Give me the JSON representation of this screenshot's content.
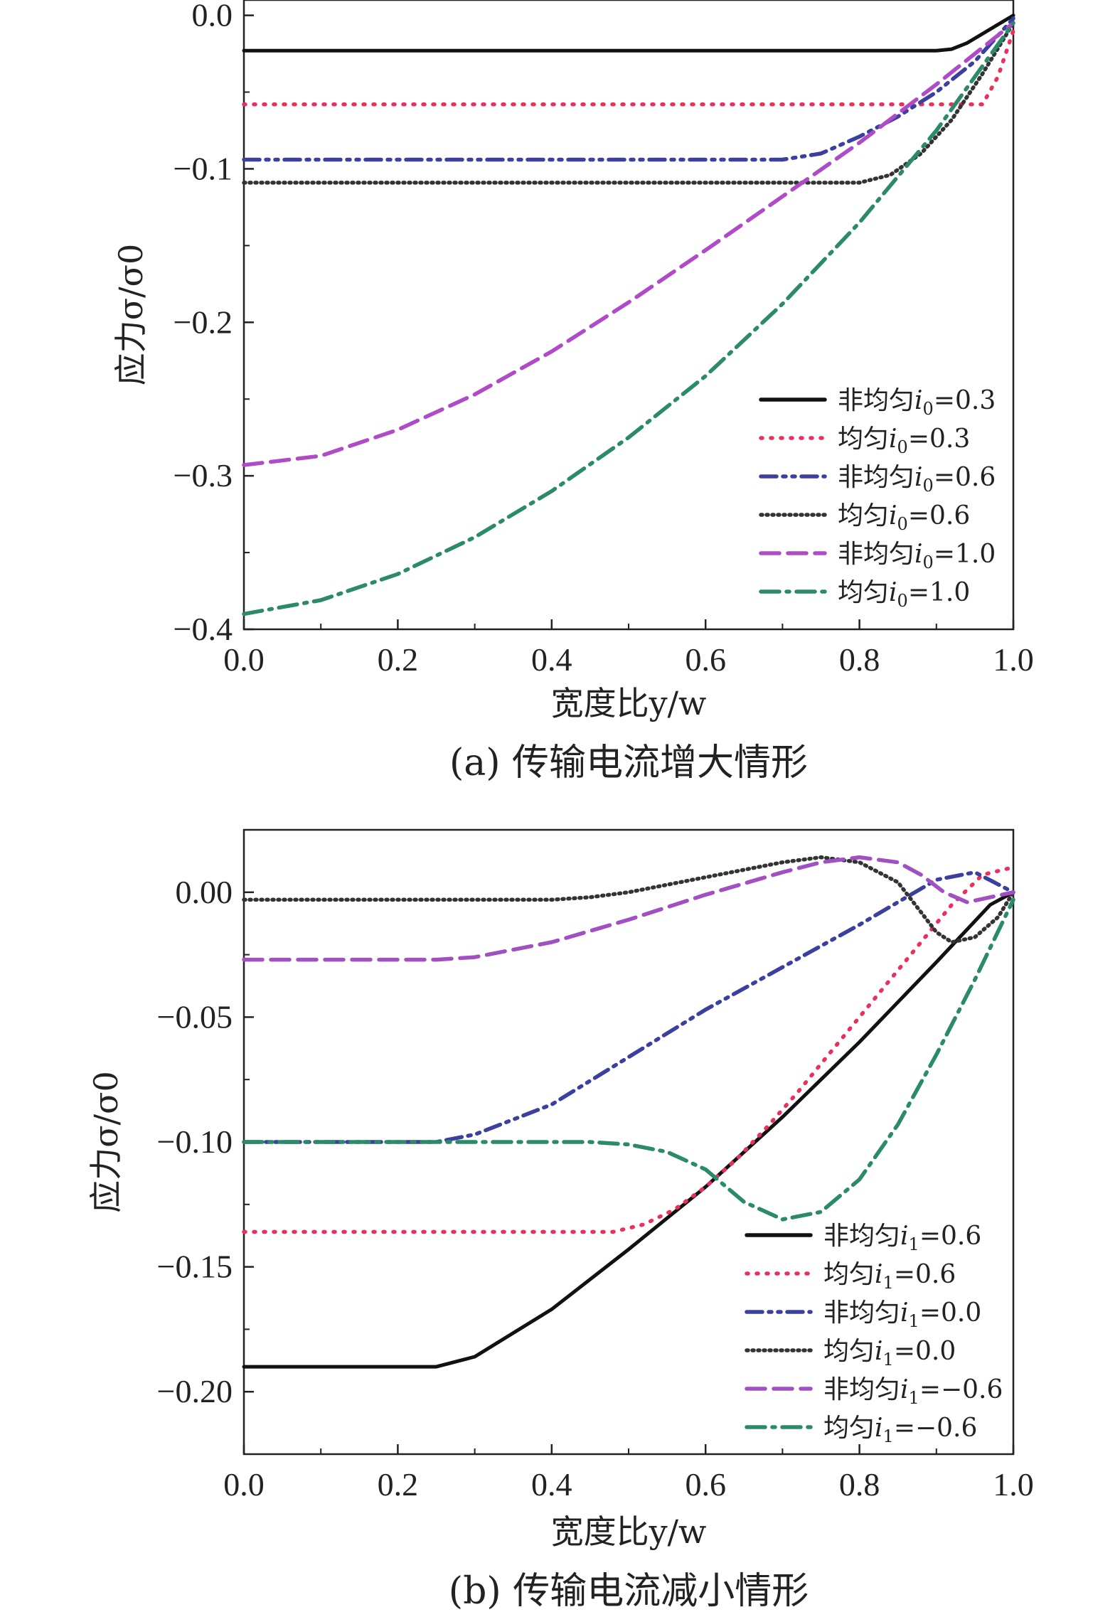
{
  "chart_data": [
    {
      "type": "line",
      "caption": "(a) 传输电流增大情形",
      "xlabel": "宽度比y/w",
      "ylabel": "应力σ/σ0",
      "xlim": [
        0,
        1
      ],
      "ylim": [
        -0.4,
        0.01
      ],
      "xticks": [
        0.0,
        0.2,
        0.4,
        0.6,
        0.8,
        1.0
      ],
      "xtick_labels": [
        "0.0",
        "0.2",
        "0.4",
        "0.6",
        "0.8",
        "1.0"
      ],
      "yticks": [
        0.0,
        -0.1,
        -0.2,
        -0.3,
        -0.4
      ],
      "ytick_labels": [
        "0.0",
        "−0.1",
        "−0.2",
        "−0.3",
        "−0.4"
      ],
      "grid": false,
      "legend_position": "bottom-right",
      "series": [
        {
          "name": "非均匀i0=0.3",
          "label_text": "非均匀",
          "label_var": "i",
          "label_sub": "0",
          "label_val": "=0.3",
          "color": "#111111",
          "style": "solid",
          "x": [
            0,
            0.9,
            0.92,
            0.94,
            0.96,
            0.98,
            1.0
          ],
          "y": [
            -0.023,
            -0.023,
            -0.022,
            -0.018,
            -0.012,
            -0.006,
            0.0
          ]
        },
        {
          "name": "均匀i0=0.3",
          "label_text": "均匀",
          "label_var": "i",
          "label_sub": "0",
          "label_val": "=0.3",
          "color": "#e8305a",
          "style": "dot",
          "x": [
            0,
            0.96,
            0.98,
            1.0
          ],
          "y": [
            -0.058,
            -0.058,
            -0.04,
            -0.01
          ]
        },
        {
          "name": "非均匀i0=0.6",
          "label_text": "非均匀",
          "label_var": "i",
          "label_sub": "0",
          "label_val": "=0.6",
          "color": "#3b3f9e",
          "style": "dashdotdot",
          "x": [
            0,
            0.7,
            0.75,
            0.8,
            0.85,
            0.9,
            0.95,
            1.0
          ],
          "y": [
            -0.094,
            -0.094,
            -0.09,
            -0.079,
            -0.066,
            -0.05,
            -0.03,
            -0.002
          ]
        },
        {
          "name": "均匀i0=0.6",
          "label_text": "均匀",
          "label_var": "i",
          "label_sub": "0",
          "label_val": "=0.6",
          "color": "#333333",
          "style": "shortdot",
          "x": [
            0,
            0.8,
            0.84,
            0.88,
            0.92,
            0.96,
            1.0
          ],
          "y": [
            -0.109,
            -0.109,
            -0.104,
            -0.09,
            -0.068,
            -0.038,
            -0.005
          ]
        },
        {
          "name": "非均匀i0=1.0",
          "label_text": "非均匀",
          "label_var": "i",
          "label_sub": "0",
          "label_val": "=1.0",
          "color": "#b04bc8",
          "style": "dash",
          "x": [
            0,
            0.1,
            0.2,
            0.3,
            0.4,
            0.5,
            0.6,
            0.7,
            0.8,
            0.9,
            1.0
          ],
          "y": [
            -0.293,
            -0.287,
            -0.27,
            -0.247,
            -0.219,
            -0.187,
            -0.153,
            -0.118,
            -0.083,
            -0.045,
            -0.005
          ]
        },
        {
          "name": "均匀i0=1.0",
          "label_text": "均匀",
          "label_var": "i",
          "label_sub": "0",
          "label_val": "=1.0",
          "color": "#2a8a6a",
          "style": "dashdot",
          "x": [
            0,
            0.1,
            0.2,
            0.3,
            0.4,
            0.5,
            0.6,
            0.7,
            0.8,
            0.9,
            1.0
          ],
          "y": [
            -0.39,
            -0.381,
            -0.364,
            -0.34,
            -0.31,
            -0.275,
            -0.235,
            -0.188,
            -0.135,
            -0.075,
            -0.005
          ]
        }
      ]
    },
    {
      "type": "line",
      "caption": "(b) 传输电流减小情形",
      "xlabel": "宽度比y/w",
      "ylabel": "应力σ/σ0",
      "xlim": [
        0,
        1
      ],
      "ylim": [
        -0.225,
        0.025
      ],
      "xticks": [
        0.0,
        0.2,
        0.4,
        0.6,
        0.8,
        1.0
      ],
      "xtick_labels": [
        "0.0",
        "0.2",
        "0.4",
        "0.6",
        "0.8",
        "1.0"
      ],
      "yticks": [
        0.0,
        -0.05,
        -0.1,
        -0.15,
        -0.2
      ],
      "ytick_labels": [
        "0.00",
        "−0.05",
        "−0.10",
        "−0.15",
        "−0.20"
      ],
      "grid": false,
      "legend_position": "bottom-right",
      "series": [
        {
          "name": "非均匀i1=0.6",
          "label_text": "非均匀",
          "label_var": "i",
          "label_sub": "1",
          "label_val": "=0.6",
          "color": "#111111",
          "style": "solid",
          "x": [
            0,
            0.25,
            0.3,
            0.4,
            0.5,
            0.6,
            0.7,
            0.8,
            0.9,
            0.97,
            1.0
          ],
          "y": [
            -0.19,
            -0.19,
            -0.186,
            -0.167,
            -0.143,
            -0.118,
            -0.09,
            -0.06,
            -0.028,
            -0.005,
            0.0
          ]
        },
        {
          "name": "均匀i1=0.6",
          "label_text": "均匀",
          "label_var": "i",
          "label_sub": "1",
          "label_val": "=0.6",
          "color": "#e8305a",
          "style": "dot",
          "x": [
            0,
            0.48,
            0.52,
            0.56,
            0.6,
            0.64,
            0.68,
            0.72,
            0.76,
            0.8,
            0.84,
            0.88,
            0.92,
            0.96,
            1.0
          ],
          "y": [
            -0.136,
            -0.136,
            -0.133,
            -0.127,
            -0.118,
            -0.107,
            -0.094,
            -0.08,
            -0.065,
            -0.05,
            -0.035,
            -0.02,
            -0.005,
            0.007,
            0.01
          ]
        },
        {
          "name": "非均匀i1=0.0",
          "label_text": "非均匀",
          "label_var": "i",
          "label_sub": "1",
          "label_val": "=0.0",
          "color": "#3b3f9e",
          "style": "dashdotdot",
          "x": [
            0,
            0.25,
            0.3,
            0.4,
            0.5,
            0.6,
            0.7,
            0.8,
            0.85,
            0.9,
            0.95,
            1.0
          ],
          "y": [
            -0.1,
            -0.1,
            -0.097,
            -0.085,
            -0.066,
            -0.047,
            -0.03,
            -0.013,
            -0.004,
            0.005,
            0.008,
            0.0
          ]
        },
        {
          "name": "均匀i1=0.0",
          "label_text": "均匀",
          "label_var": "i",
          "label_sub": "1",
          "label_val": "=0.0",
          "color": "#333333",
          "style": "shortdot",
          "x": [
            0,
            0.4,
            0.45,
            0.5,
            0.6,
            0.7,
            0.75,
            0.8,
            0.85,
            0.88,
            0.9,
            0.92,
            0.95,
            0.98,
            1.0
          ],
          "y": [
            -0.003,
            -0.003,
            -0.002,
            0.0,
            0.006,
            0.012,
            0.014,
            0.012,
            0.004,
            -0.008,
            -0.016,
            -0.02,
            -0.018,
            -0.01,
            0.0
          ]
        },
        {
          "name": "非均匀i1=−0.6",
          "label_text": "非均匀",
          "label_var": "i",
          "label_sub": "1",
          "label_val": "=−0.6",
          "color": "#a050c0",
          "style": "dash",
          "x": [
            0,
            0.25,
            0.3,
            0.4,
            0.5,
            0.6,
            0.7,
            0.75,
            0.8,
            0.85,
            0.88,
            0.91,
            0.94,
            0.97,
            1.0
          ],
          "y": [
            -0.027,
            -0.027,
            -0.026,
            -0.02,
            -0.011,
            -0.001,
            0.008,
            0.012,
            0.014,
            0.012,
            0.007,
            0.0,
            -0.004,
            -0.002,
            0.0
          ]
        },
        {
          "name": "均匀i1=−0.6",
          "label_text": "均匀",
          "label_var": "i",
          "label_sub": "1",
          "label_val": "=−0.6",
          "color": "#2a8a6a",
          "style": "dashdot",
          "x": [
            0,
            0.45,
            0.5,
            0.55,
            0.6,
            0.65,
            0.7,
            0.75,
            0.8,
            0.85,
            0.9,
            0.95,
            1.0
          ],
          "y": [
            -0.1,
            -0.1,
            -0.101,
            -0.104,
            -0.111,
            -0.124,
            -0.131,
            -0.128,
            -0.115,
            -0.093,
            -0.065,
            -0.035,
            -0.003
          ]
        }
      ]
    }
  ]
}
